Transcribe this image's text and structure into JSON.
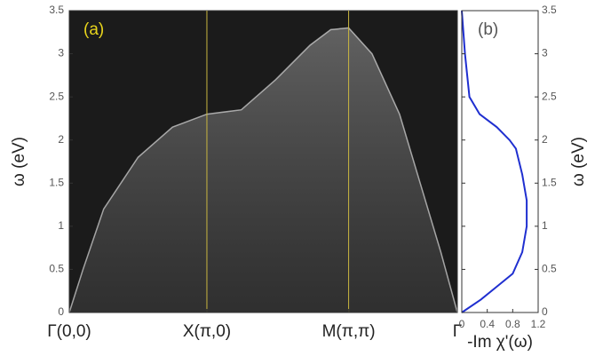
{
  "chart_data": [
    {
      "type": "line",
      "annotation": "(a)",
      "ylabel": "ω (eV)",
      "background": "#1b1b1b",
      "grid_color": "#c9b640",
      "annotation_color": "#e8d41c",
      "x": [
        0,
        0.1,
        0.25,
        0.5,
        0.75,
        1,
        1.25,
        1.5,
        1.75,
        1.9,
        2.03,
        2.2,
        2.4,
        2.55,
        2.7,
        2.82
      ],
      "series": [
        {
          "color": "#d8d8d8",
          "values": [
            0,
            0.5,
            1.2,
            1.8,
            2.15,
            2.3,
            2.35,
            2.7,
            3.1,
            3.28,
            3.3,
            3.0,
            2.3,
            1.5,
            0.7,
            0
          ]
        }
      ],
      "xlim": [
        0,
        2.82
      ],
      "ylim": [
        0,
        3.5
      ],
      "xticks": [
        {
          "value": 0,
          "label": "Γ(0,0)"
        },
        {
          "value": 1,
          "label": "X(π,0)"
        },
        {
          "value": 2.03,
          "label": "M(π,π)"
        },
        {
          "value": 2.82,
          "label": "Γ"
        }
      ],
      "yticks": [
        0,
        0.5,
        1,
        1.5,
        2,
        2.5,
        3,
        3.5
      ],
      "grid": true
    },
    {
      "type": "line",
      "annotation": "(b)",
      "xlabel": "-Im χ'(ω)",
      "ylabel": "ω (eV)",
      "x": [
        0,
        0.3,
        0.55,
        0.8,
        0.95,
        1.02,
        1.02,
        0.95,
        0.85,
        0.75,
        0.55,
        0.28,
        0.12,
        0.05,
        0.02,
        0
      ],
      "series": [
        {
          "color": "#1f2fd0",
          "values": [
            0,
            0.15,
            0.3,
            0.45,
            0.7,
            1.0,
            1.3,
            1.6,
            1.9,
            2.0,
            2.15,
            2.3,
            2.5,
            3.0,
            3.3,
            3.5
          ]
        }
      ],
      "xlim": [
        0,
        1.2
      ],
      "ylim": [
        0,
        3.5
      ],
      "xticks": [
        0,
        0.4,
        0.8,
        1.2
      ],
      "yticks": [
        0,
        0.5,
        1,
        1.5,
        2,
        2.5,
        3,
        3.5
      ]
    }
  ]
}
